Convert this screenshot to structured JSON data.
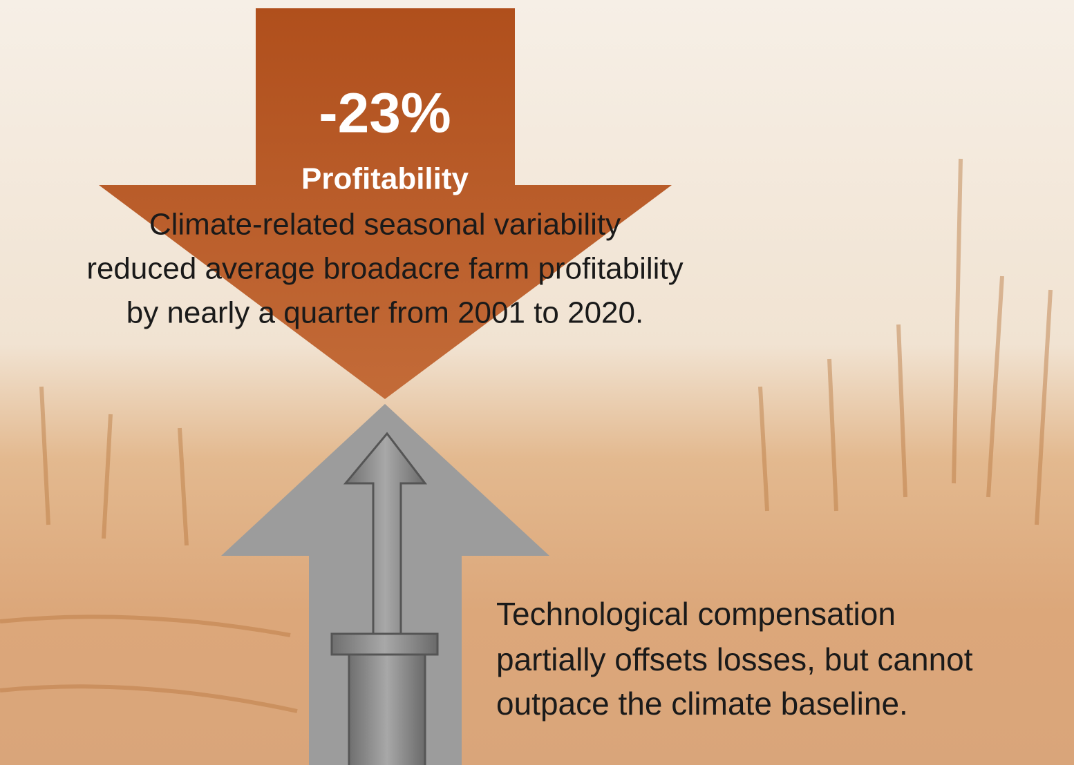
{
  "down_arrow": {
    "figure": "-23%",
    "label": "Profitability"
  },
  "climate_text": {
    "lines": [
      "Climate-related seasonal variability",
      "reduced average broadacre farm profitability",
      "by nearly a quarter from 2001 to 2020."
    ]
  },
  "tech_text": {
    "lines": [
      "Technological compensation",
      "partially offsets losses, but cannot",
      "outpace the climate baseline."
    ]
  }
}
